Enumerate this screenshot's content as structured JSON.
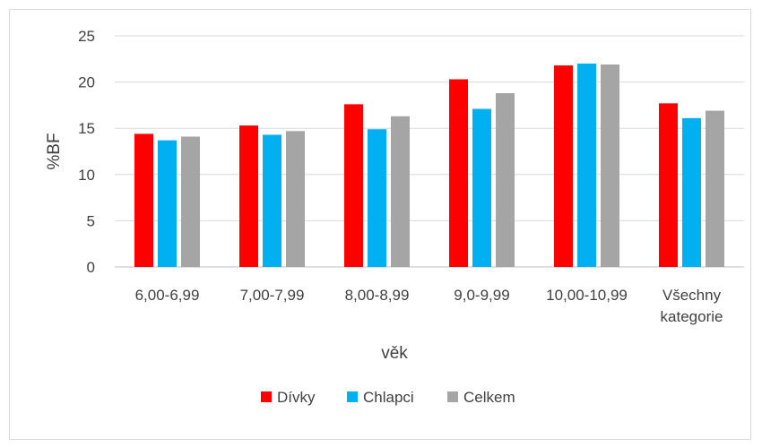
{
  "chart_data": {
    "type": "bar",
    "categories": [
      [
        "6,00-6,99"
      ],
      [
        "7,00-7,99"
      ],
      [
        "8,00-8,99"
      ],
      [
        "9,0-9,99"
      ],
      [
        "10,00-10,99"
      ],
      [
        "Všechny",
        "kategorie"
      ]
    ],
    "series": [
      {
        "name": "Dívky",
        "color": "#ff0000",
        "values": [
          14.4,
          15.3,
          17.6,
          20.3,
          21.8,
          17.7
        ]
      },
      {
        "name": "Chlapci",
        "color": "#00b0f0",
        "values": [
          13.7,
          14.3,
          14.9,
          17.1,
          22.0,
          16.1
        ]
      },
      {
        "name": "Celkem",
        "color": "#a5a5a5",
        "values": [
          14.1,
          14.7,
          16.3,
          18.8,
          21.9,
          16.9
        ]
      }
    ],
    "xlabel": "věk",
    "ylabel": "%BF",
    "ylim": [
      0,
      25
    ],
    "yticks": [
      0,
      5,
      10,
      15,
      20,
      25
    ],
    "grid": true,
    "legend_position": "bottom"
  }
}
